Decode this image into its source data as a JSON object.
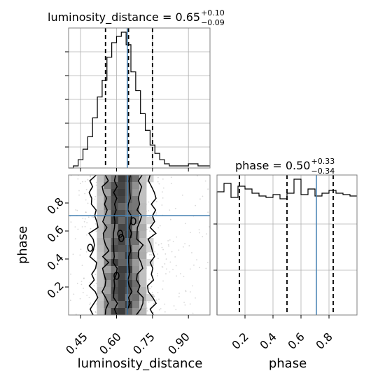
{
  "chart_data": [
    {
      "type": "histogram",
      "panel": "luminosity_distance marginal",
      "title": {
        "prefix": "luminosity_distance = 0.65",
        "upper": "+0.10",
        "lower": "−0.09"
      },
      "xlim": [
        0.4,
        0.99
      ],
      "bin_edges": [
        0.4,
        0.42,
        0.44,
        0.46,
        0.48,
        0.5,
        0.52,
        0.54,
        0.56,
        0.58,
        0.6,
        0.62,
        0.64,
        0.66,
        0.68,
        0.7,
        0.72,
        0.74,
        0.76,
        0.78,
        0.8,
        0.82,
        0.84,
        0.86,
        0.88,
        0.9,
        0.92,
        0.94,
        0.96,
        0.99
      ],
      "counts": [
        0,
        1,
        4,
        9,
        15,
        24,
        34,
        42,
        53,
        60,
        63,
        65,
        59,
        46,
        37,
        26,
        18,
        11,
        7,
        4,
        2,
        1,
        1,
        1,
        1,
        2,
        2,
        1,
        1
      ],
      "quantile_lines": [
        0.554,
        0.65,
        0.75
      ],
      "truth": 0.645,
      "grid": true
    },
    {
      "type": "histogram",
      "panel": "phase marginal",
      "title": {
        "prefix": "phase = 0.50",
        "upper": "+0.33",
        "lower": "−0.34"
      },
      "xlim": [
        0.0,
        1.0
      ],
      "bin_edges": [
        0.0,
        0.05,
        0.1,
        0.15,
        0.2,
        0.25,
        0.3,
        0.35,
        0.4,
        0.45,
        0.5,
        0.55,
        0.6,
        0.65,
        0.7,
        0.75,
        0.8,
        0.85,
        0.9,
        0.95,
        1.0
      ],
      "counts": [
        88,
        94,
        84,
        92,
        90,
        87,
        85,
        84,
        86,
        83,
        87,
        97,
        86,
        90,
        85,
        87,
        89,
        87,
        86,
        85
      ],
      "quantile_lines": [
        0.16,
        0.5,
        0.83
      ],
      "truth": 0.71,
      "grid": true,
      "xticks": [
        "0.2",
        "0.4",
        "0.6",
        "0.8"
      ],
      "xlabel": "phase"
    },
    {
      "type": "heatmap",
      "panel": "2D luminosity_distance vs phase",
      "xlim": [
        0.4,
        0.99
      ],
      "ylim": [
        0.0,
        1.0
      ],
      "truth": {
        "x": 0.645,
        "y": 0.71
      },
      "density_centre": 0.625,
      "density_width": 0.055,
      "contour_levels": 4,
      "xticks": [
        "0.45",
        "0.60",
        "0.75",
        "0.90"
      ],
      "yticks": [
        "0.2",
        "0.4",
        "0.6",
        "0.8"
      ],
      "xlabel": "luminosity_distance",
      "ylabel": "phase"
    }
  ],
  "colors": {
    "truth": "#4682b4",
    "hist": "#000000",
    "grid": "#b0b0b0",
    "frame": "#7f7f7f",
    "points": "#aaaaaa"
  }
}
